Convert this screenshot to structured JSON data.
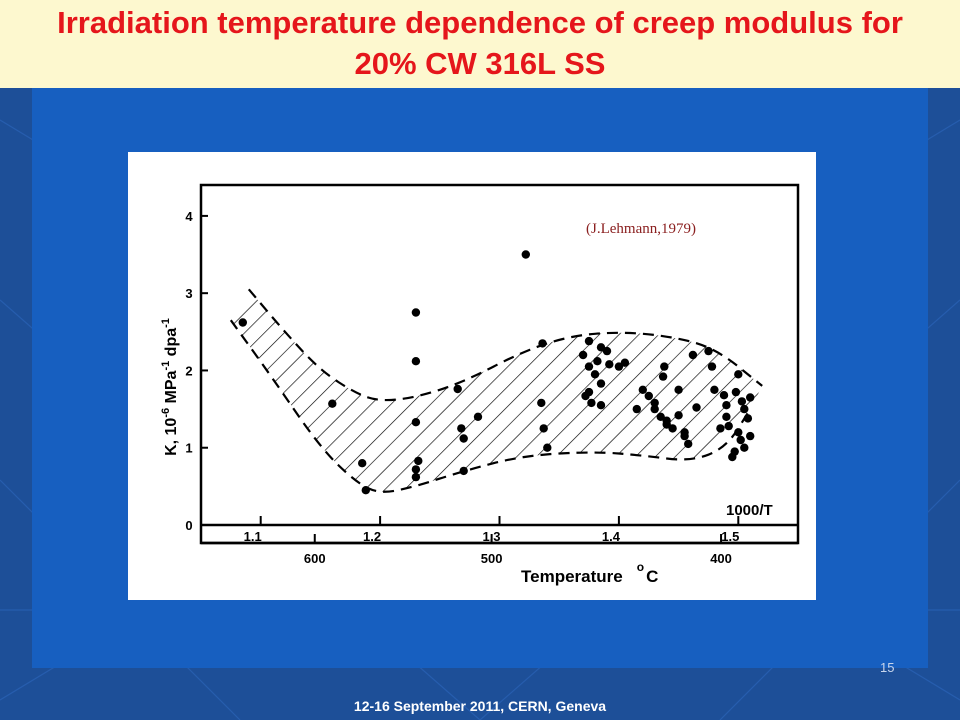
{
  "slide": {
    "title": "Irradiation temperature dependence of creep modulus for 20% CW 316L SS",
    "footer": "12-16  September 2011, CERN, Geneva",
    "slide_number": "15"
  },
  "colors": {
    "title": "#e5161b",
    "title_bar": "#fdf8cf",
    "background": "#1d4f98",
    "panel": "#175fc0",
    "plot_ink": "#000000",
    "annotation": "#8b2020"
  },
  "chart_data": {
    "type": "scatter",
    "annotation": "(J.Lehmann,1979)",
    "ylabel_parts": {
      "k": "K,",
      "base": "10",
      "exp1": "-6",
      "mpa": "MPa",
      "exp2": "-1",
      "dpa": "dpa",
      "exp3": "-1"
    },
    "xlabel": "Temperature",
    "xlabel_unit_sup": "o",
    "xlabel_unit": "C",
    "x_top_label": "1000/T",
    "ylim": [
      0,
      4.4
    ],
    "xlim": [
      1.05,
      1.55
    ],
    "y_ticks": [
      "0",
      "1",
      "2",
      "3",
      "4"
    ],
    "y_tick_values": [
      0,
      1,
      2,
      3,
      4
    ],
    "inv_ticks": [
      "1.1",
      "1.2",
      "1.3",
      "1.4",
      "1.5"
    ],
    "inv_tick_values": [
      1.1,
      1.2,
      1.3,
      1.4,
      1.5
    ],
    "temp_ticks": [
      "600",
      "500",
      "400"
    ],
    "temp_tick_values": [
      600,
      500,
      400
    ],
    "grid": false,
    "band": {
      "description": "hatched scatter band",
      "upper": [
        [
          1.09,
          3.05
        ],
        [
          1.12,
          2.5
        ],
        [
          1.15,
          2.0
        ],
        [
          1.18,
          1.7
        ],
        [
          1.2,
          1.6
        ],
        [
          1.23,
          1.65
        ],
        [
          1.27,
          1.85
        ],
        [
          1.32,
          2.25
        ],
        [
          1.36,
          2.45
        ],
        [
          1.4,
          2.5
        ],
        [
          1.44,
          2.45
        ],
        [
          1.48,
          2.3
        ],
        [
          1.52,
          1.8
        ]
      ],
      "lower": [
        [
          1.075,
          2.65
        ],
        [
          1.11,
          1.9
        ],
        [
          1.15,
          1.0
        ],
        [
          1.18,
          0.55
        ],
        [
          1.2,
          0.4
        ],
        [
          1.23,
          0.5
        ],
        [
          1.27,
          0.7
        ],
        [
          1.32,
          0.9
        ],
        [
          1.38,
          0.95
        ],
        [
          1.42,
          0.9
        ],
        [
          1.46,
          0.82
        ],
        [
          1.49,
          1.0
        ],
        [
          1.51,
          1.5
        ]
      ]
    },
    "points": [
      [
        1.085,
        2.62
      ],
      [
        1.16,
        1.57
      ],
      [
        1.185,
        0.8
      ],
      [
        1.188,
        0.45
      ],
      [
        1.23,
        2.75
      ],
      [
        1.23,
        2.12
      ],
      [
        1.23,
        1.33
      ],
      [
        1.232,
        0.83
      ],
      [
        1.23,
        0.72
      ],
      [
        1.23,
        0.62
      ],
      [
        1.265,
        1.76
      ],
      [
        1.268,
        1.25
      ],
      [
        1.27,
        1.12
      ],
      [
        1.27,
        0.7
      ],
      [
        1.282,
        1.4
      ],
      [
        1.322,
        3.5
      ],
      [
        1.336,
        2.35
      ],
      [
        1.335,
        1.58
      ],
      [
        1.337,
        1.25
      ],
      [
        1.34,
        1.0
      ],
      [
        1.375,
        2.38
      ],
      [
        1.37,
        2.2
      ],
      [
        1.385,
        2.3
      ],
      [
        1.39,
        2.25
      ],
      [
        1.382,
        2.12
      ],
      [
        1.392,
        2.08
      ],
      [
        1.4,
        2.05
      ],
      [
        1.405,
        2.1
      ],
      [
        1.375,
        2.05
      ],
      [
        1.38,
        1.95
      ],
      [
        1.385,
        1.83
      ],
      [
        1.375,
        1.72
      ],
      [
        1.372,
        1.67
      ],
      [
        1.377,
        1.58
      ],
      [
        1.385,
        1.55
      ],
      [
        1.415,
        1.5
      ],
      [
        1.42,
        1.75
      ],
      [
        1.425,
        1.67
      ],
      [
        1.43,
        1.58
      ],
      [
        1.438,
        2.05
      ],
      [
        1.437,
        1.92
      ],
      [
        1.43,
        1.5
      ],
      [
        1.435,
        1.4
      ],
      [
        1.44,
        1.35
      ],
      [
        1.445,
        1.25
      ],
      [
        1.44,
        1.3
      ],
      [
        1.45,
        1.42
      ],
      [
        1.455,
        1.2
      ],
      [
        1.45,
        1.75
      ],
      [
        1.455,
        1.15
      ],
      [
        1.458,
        1.05
      ],
      [
        1.462,
        2.2
      ],
      [
        1.465,
        1.52
      ],
      [
        1.475,
        2.25
      ],
      [
        1.478,
        2.05
      ],
      [
        1.48,
        1.75
      ],
      [
        1.485,
        1.25
      ],
      [
        1.488,
        1.68
      ],
      [
        1.49,
        1.55
      ],
      [
        1.49,
        1.4
      ],
      [
        1.492,
        1.28
      ],
      [
        1.5,
        1.95
      ],
      [
        1.498,
        1.72
      ],
      [
        1.503,
        1.6
      ],
      [
        1.505,
        1.5
      ],
      [
        1.508,
        1.38
      ],
      [
        1.5,
        1.2
      ],
      [
        1.502,
        1.1
      ],
      [
        1.505,
        1.0
      ],
      [
        1.497,
        0.95
      ],
      [
        1.495,
        0.88
      ],
      [
        1.51,
        1.65
      ],
      [
        1.51,
        1.15
      ]
    ]
  }
}
